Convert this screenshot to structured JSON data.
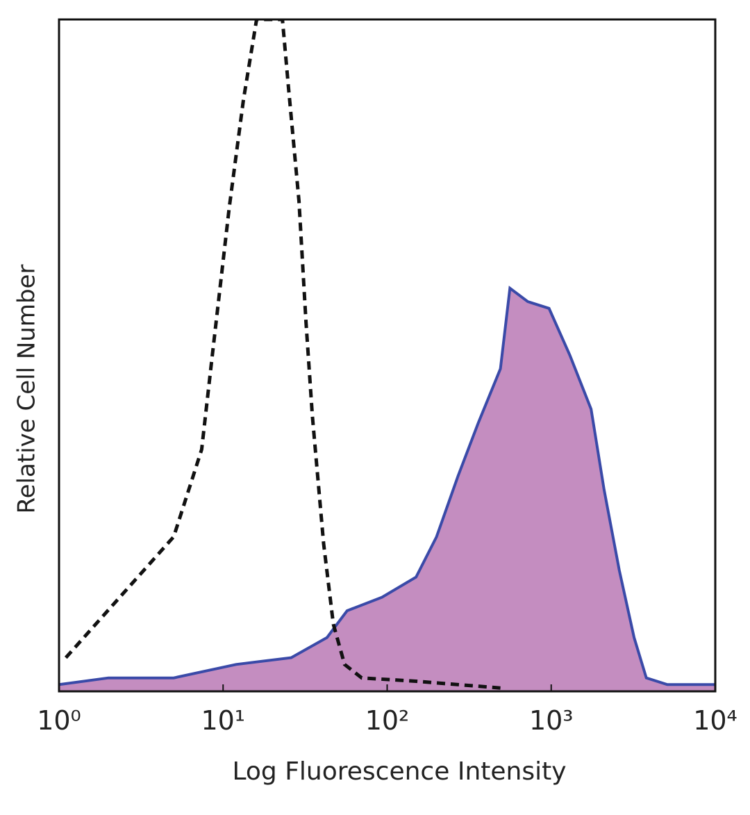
{
  "chart_data": {
    "type": "histogram-overlay",
    "x_label": "Log Fluorescence Intensity",
    "y_label": "Relative Cell Number",
    "log_x": true,
    "xlim": [
      1,
      10000
    ],
    "xticks": [
      {
        "value": 1,
        "label": "10⁰"
      },
      {
        "value": 10,
        "label": "10¹"
      },
      {
        "value": 100,
        "label": "10²"
      },
      {
        "value": 1000,
        "label": "10³"
      },
      {
        "value": 10000,
        "label": "10⁴"
      }
    ],
    "ylim": [
      0,
      100
    ],
    "series": [
      {
        "color": "#3a4aa8",
        "fill": "#c48dc0",
        "line_style": "solid",
        "x": [
          1,
          2,
          5,
          12,
          26,
          43,
          57,
          93,
          150,
          200,
          270,
          360,
          490,
          560,
          720,
          970,
          1300,
          1750,
          2100,
          2600,
          3200,
          3800,
          5100,
          10000
        ],
        "values": [
          1,
          2,
          2,
          4,
          5,
          8,
          12,
          14,
          17,
          23,
          32,
          40,
          48,
          60,
          58,
          57,
          50,
          42,
          30,
          18,
          8,
          2,
          1,
          1
        ]
      },
      {
        "color": "#111111",
        "fill": "none",
        "line_style": "dashed",
        "x": [
          1.1,
          5,
          7.4,
          8.5,
          10.9,
          13.3,
          16,
          23,
          25,
          29,
          32,
          35,
          41,
          47,
          55,
          70,
          150,
          490
        ],
        "values": [
          5,
          23,
          36,
          49,
          72,
          88,
          100,
          100,
          90,
          73,
          55,
          41,
          22,
          10,
          4,
          2,
          1.5,
          0.5
        ]
      }
    ]
  }
}
